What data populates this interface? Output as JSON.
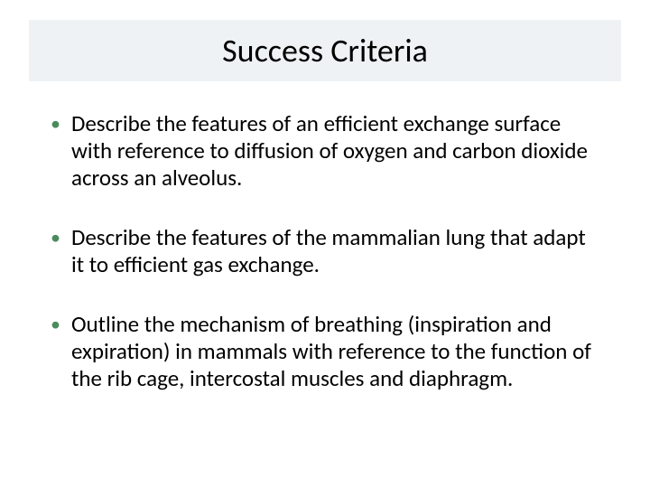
{
  "title": "Success Criteria",
  "title_bar_bg": "#eff2f4",
  "title_color": "#000000",
  "title_fontsize": 36,
  "bullet_color": "#4a8b5c",
  "body_color": "#000000",
  "body_fontsize": 25,
  "body_lineheight": 30,
  "background_color": "#ffffff",
  "bullets": [
    "Describe the features of an efficient exchange surface with reference to diffusion of oxygen and carbon dioxide across an alveolus.",
    "Describe the features of the mammalian lung that adapt it to efficient gas exchange.",
    "Outline the mechanism of breathing (inspiration and expiration) in mammals with reference to the function of the rib cage, intercostal muscles and diaphragm."
  ]
}
